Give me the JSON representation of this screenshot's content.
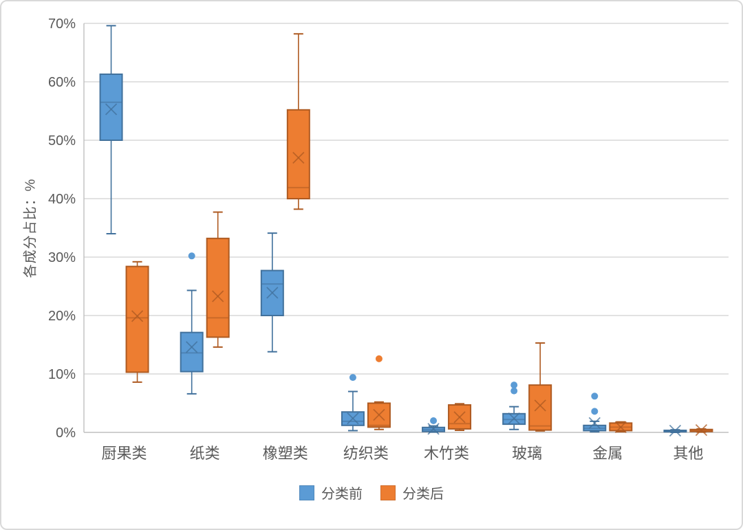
{
  "chart_data": {
    "type": "boxplot",
    "ylabel": "各成分占比：%",
    "ylim": [
      0,
      70
    ],
    "ytick_step": 10,
    "ytick_suffix": "%",
    "grid": true,
    "legend_position": "bottom",
    "categories": [
      "厨果类",
      "纸类",
      "橡塑类",
      "纺织类",
      "木竹类",
      "玻璃",
      "金属",
      "其他"
    ],
    "colors": {
      "grid": "#d9d9d9",
      "axis": "#bfbfbf",
      "text": "#595959"
    },
    "series": [
      {
        "name": "分类前",
        "fill": "#5b9bd5",
        "stroke": "#41719c",
        "boxes": [
          {
            "low": 34.0,
            "q1": 50.0,
            "median": 56.5,
            "mean": 55.3,
            "q3": 61.3,
            "high": 69.6,
            "outliers": []
          },
          {
            "low": 6.6,
            "q1": 10.4,
            "median": 13.6,
            "mean": 14.6,
            "q3": 17.1,
            "high": 24.3,
            "outliers": [
              30.2
            ]
          },
          {
            "low": 13.8,
            "q1": 20.0,
            "median": 25.4,
            "mean": 23.9,
            "q3": 27.7,
            "high": 34.1,
            "outliers": []
          },
          {
            "low": 0.3,
            "q1": 1.2,
            "median": 1.9,
            "mean": 2.4,
            "q3": 3.5,
            "high": 7.0,
            "outliers": [
              9.4
            ]
          },
          {
            "low": 0.05,
            "q1": 0.15,
            "median": 0.45,
            "mean": 0.6,
            "q3": 0.85,
            "high": 1.1,
            "outliers": [
              2.0
            ]
          },
          {
            "low": 0.5,
            "q1": 1.4,
            "median": 2.2,
            "mean": 2.4,
            "q3": 3.2,
            "high": 4.4,
            "outliers": [
              8.1,
              7.1
            ]
          },
          {
            "low": 0.1,
            "q1": 0.3,
            "median": 0.7,
            "mean": 1.6,
            "q3": 1.2,
            "high": 1.9,
            "outliers": [
              6.2,
              3.6
            ]
          },
          {
            "low": 0.0,
            "q1": 0.1,
            "median": 0.2,
            "mean": 0.3,
            "q3": 0.35,
            "high": 0.45,
            "outliers": []
          }
        ]
      },
      {
        "name": "分类后",
        "fill": "#ed7d31",
        "stroke": "#ae5a21",
        "boxes": [
          {
            "low": 8.6,
            "q1": 10.3,
            "median": 19.6,
            "mean": 19.9,
            "q3": 28.4,
            "high": 29.2,
            "outliers": []
          },
          {
            "low": 14.6,
            "q1": 16.3,
            "median": 19.6,
            "mean": 23.3,
            "q3": 33.2,
            "high": 37.7,
            "outliers": []
          },
          {
            "low": 38.2,
            "q1": 40.0,
            "median": 41.9,
            "mean": 47.0,
            "q3": 55.2,
            "high": 68.2,
            "outliers": []
          },
          {
            "low": 0.5,
            "q1": 0.9,
            "median": 1.2,
            "mean": 3.0,
            "q3": 5.0,
            "high": 5.2,
            "outliers": [
              12.6
            ]
          },
          {
            "low": 0.35,
            "q1": 0.6,
            "median": 1.5,
            "mean": 2.6,
            "q3": 4.7,
            "high": 4.9,
            "outliers": []
          },
          {
            "low": 0.25,
            "q1": 0.4,
            "median": 1.1,
            "mean": 4.6,
            "q3": 8.1,
            "high": 15.3,
            "outliers": []
          },
          {
            "low": 0.1,
            "q1": 0.3,
            "median": 0.9,
            "mean": 0.9,
            "q3": 1.6,
            "high": 1.8,
            "outliers": []
          },
          {
            "low": 0.05,
            "q1": 0.15,
            "median": 0.3,
            "mean": 0.4,
            "q3": 0.5,
            "high": 0.6,
            "outliers": []
          }
        ]
      }
    ],
    "legend": [
      "分类前",
      "分类后"
    ]
  }
}
